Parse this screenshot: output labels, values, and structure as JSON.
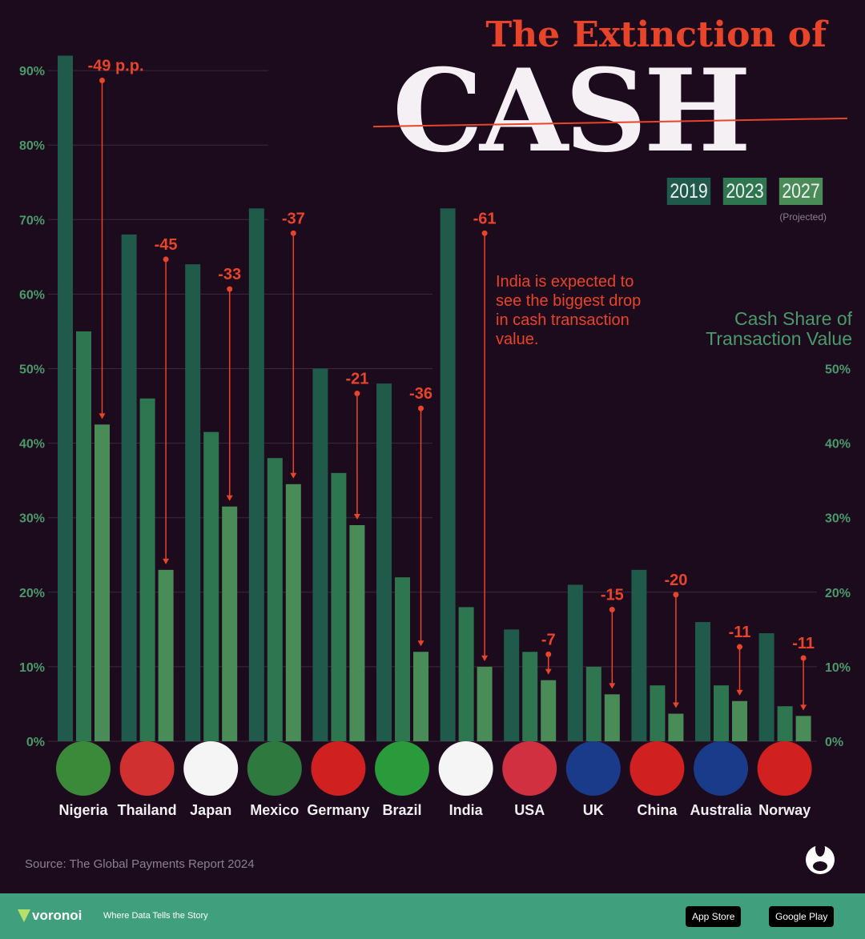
{
  "title": {
    "line1": "The Extinction of",
    "line2": "CASH"
  },
  "legend": {
    "items": [
      "2019",
      "2023",
      "2027"
    ],
    "projected": "(Projected)"
  },
  "colors": {
    "2019": "#1f5a4b",
    "2023": "#2e7650",
    "2027": "#4a8c58",
    "accent": "#e8442a",
    "background": "#1c0a1d"
  },
  "note": "India is expected to see the biggest drop in cash transaction value.",
  "axis_title": {
    "line1": "Cash Share of",
    "line2": "Transaction Value"
  },
  "source": "Source: The Global Payments Report 2024",
  "footer": {
    "brand": "voronoi",
    "tagline": "Where Data Tells the Story",
    "app_store": "App Store",
    "google_play": "Google Play"
  },
  "chart_data": {
    "type": "bar",
    "categories": [
      "Nigeria",
      "Thailand",
      "Japan",
      "Mexico",
      "Germany",
      "Brazil",
      "India",
      "USA",
      "UK",
      "China",
      "Australia",
      "Norway"
    ],
    "series": [
      {
        "name": "2019",
        "values": [
          92,
          68,
          64,
          71.5,
          50,
          48,
          71.5,
          15,
          21,
          23,
          16,
          14.5
        ]
      },
      {
        "name": "2023",
        "values": [
          55,
          46,
          41.5,
          38,
          36,
          22,
          18,
          12,
          10,
          7.5,
          7.5,
          4.7
        ]
      },
      {
        "name": "2027",
        "values": [
          42.5,
          23,
          31.5,
          34.5,
          29,
          12,
          10,
          8.2,
          6.3,
          3.7,
          5.4,
          3.4
        ]
      }
    ],
    "changes": [
      "-49 p.p.",
      "-45",
      "-33",
      "-37",
      "-21",
      "-36",
      "-61",
      "-7",
      "-15",
      "-20",
      "-11",
      "-11"
    ],
    "left_ticks": [
      "0%",
      "10%",
      "20%",
      "30%",
      "40%",
      "50%",
      "60%",
      "70%",
      "80%",
      "90%"
    ],
    "right_ticks": [
      "0%",
      "10%",
      "20%",
      "30%",
      "40%",
      "50%"
    ],
    "ylim": [
      0,
      92
    ],
    "ylabel": "Cash Share of Transaction Value"
  }
}
